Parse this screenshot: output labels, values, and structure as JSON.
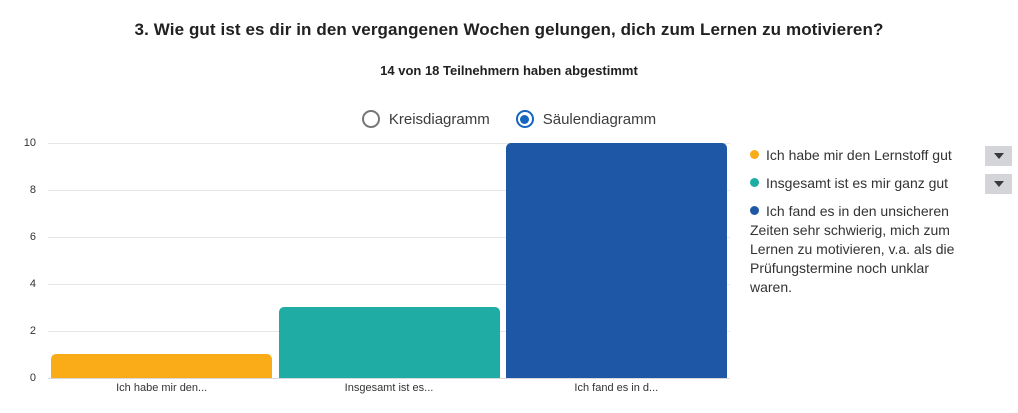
{
  "header": {
    "title": "3. Wie gut ist es dir in den vergangenen Wochen gelungen, dich zum Lernen zu motivieren?",
    "subtitle": "14 von 18 Teilnehmern haben abgestimmt"
  },
  "chart_type_toggle": {
    "options": [
      {
        "label": "Kreisdiagramm",
        "selected": false
      },
      {
        "label": "Säulendiagramm",
        "selected": true
      }
    ]
  },
  "chart_data": {
    "type": "bar",
    "title": "3. Wie gut ist es dir in den vergangenen Wochen gelungen, dich zum Lernen zu motivieren?",
    "subtitle": "14 von 18 Teilnehmern haben abgestimmt",
    "categories": [
      "Ich habe mir den...",
      "Insgesamt ist es...",
      "Ich fand es in d..."
    ],
    "values": [
      1,
      3,
      10
    ],
    "bar_colors": [
      "#FAAB18",
      "#1FACA4",
      "#1D57A5"
    ],
    "ylim": [
      0,
      10
    ],
    "yticks": [
      0,
      2,
      4,
      6,
      8,
      10
    ],
    "grid": true,
    "legend_position": "right"
  },
  "legend": {
    "items": [
      {
        "label": "Ich habe mir den Lernstoff gut",
        "color": "#FAAB18",
        "has_dropdown": true
      },
      {
        "label": "Insgesamt ist es mir ganz gut",
        "color": "#1FACA4",
        "has_dropdown": true
      },
      {
        "label": "Ich fand es in den unsicheren Zeiten sehr schwierig, mich zum Lernen zu motivieren, v.a. als die Prüfungstermine noch unklar waren.",
        "color": "#1D57A5",
        "has_dropdown": false
      }
    ]
  },
  "colors": {
    "radio_selected": "#1565C0",
    "radio_unselected_border": "#757575",
    "gridline": "#E6E6E6",
    "axis_line": "#D8D8D8",
    "text_primary": "#212121",
    "text_secondary": "#333333",
    "dropdown_button_bg": "#D3D5D8",
    "background": "#FFFFFF"
  }
}
